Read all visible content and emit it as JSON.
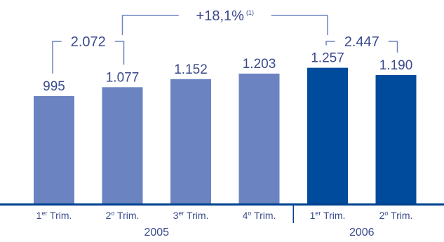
{
  "chart_data": {
    "type": "bar",
    "title": "",
    "xlabel": "",
    "ylabel": "",
    "ylim": [
      0,
      1300
    ],
    "grid": false,
    "bars": [
      {
        "value": 995,
        "label": "995",
        "tick_main": "1",
        "tick_sup": "er",
        "tick_rest": " Trim.",
        "group": "2005"
      },
      {
        "value": 1077,
        "label": "1.077",
        "tick_main": "2",
        "tick_sup": "o",
        "tick_rest": " Trim.",
        "group": "2005"
      },
      {
        "value": 1152,
        "label": "1.152",
        "tick_main": "3",
        "tick_sup": "er",
        "tick_rest": " Trim.",
        "group": "2005"
      },
      {
        "value": 1203,
        "label": "1.203",
        "tick_main": "4",
        "tick_sup": "o",
        "tick_rest": " Trim.",
        "group": "2005"
      },
      {
        "value": 1257,
        "label": "1.257",
        "tick_main": "1",
        "tick_sup": "er",
        "tick_rest": " Trim.",
        "group": "2006"
      },
      {
        "value": 1190,
        "label": "1.190",
        "tick_main": "2",
        "tick_sup": "o",
        "tick_rest": " Trim.",
        "group": "2006"
      }
    ],
    "groups": [
      {
        "name": "2005",
        "color": "#6c83c2"
      },
      {
        "name": "2006",
        "color": "#004b9c"
      }
    ],
    "annotations": {
      "sum_2005": "2.072",
      "sum_2006": "2.447",
      "growth": "+18,1%",
      "growth_note": "(1)"
    },
    "colors": {
      "text": "#3a4a8c",
      "bracket": "#6c83c2",
      "axis": "#00428f"
    }
  }
}
